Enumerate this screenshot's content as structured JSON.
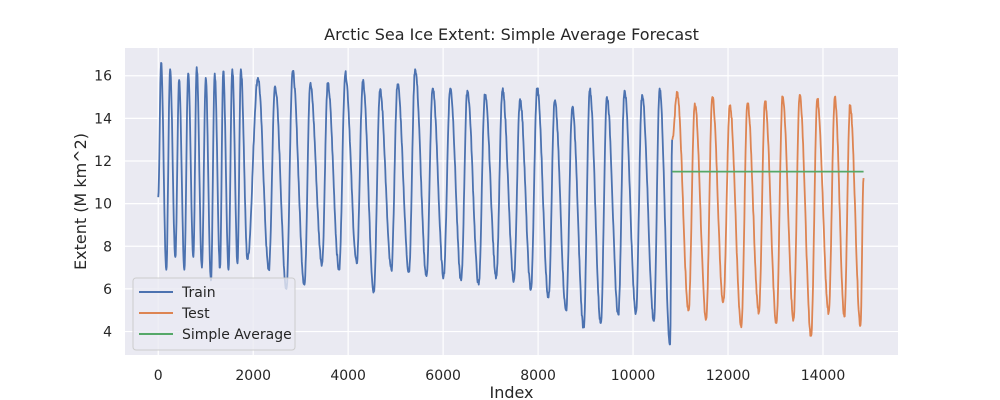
{
  "chart_data": {
    "type": "line",
    "title": "Arctic Sea Ice Extent: Simple Average Forecast",
    "xlabel": "Index",
    "ylabel": "Extent (M km^2)",
    "xlim": [
      -700,
      15580
    ],
    "ylim": [
      2.9,
      17.3
    ],
    "xticks": [
      0,
      2000,
      4000,
      6000,
      8000,
      10000,
      12000,
      14000
    ],
    "yticks": [
      4,
      6,
      8,
      10,
      12,
      14,
      16
    ],
    "grid": true,
    "legend_position": "lower-left",
    "series": [
      {
        "name": "Train",
        "color": "#4c72b0",
        "x_start": 0,
        "x_end": 10823,
        "start_value": 10.3,
        "end_value": 13.0,
        "cycles": [
          {
            "max_x": 60,
            "max": 16.6,
            "min_x": 170,
            "min": 6.9
          },
          {
            "max_x": 250,
            "max": 16.3,
            "min_x": 360,
            "min": 7.5
          },
          {
            "max_x": 440,
            "max": 15.8,
            "min_x": 550,
            "min": 6.9
          },
          {
            "max_x": 630,
            "max": 16.1,
            "min_x": 740,
            "min": 7.5
          },
          {
            "max_x": 810,
            "max": 16.4,
            "min_x": 920,
            "min": 7.0
          },
          {
            "max_x": 1000,
            "max": 15.9,
            "min_x": 1110,
            "min": 6.4
          },
          {
            "max_x": 1190,
            "max": 16.1,
            "min_x": 1300,
            "min": 7.0
          },
          {
            "max_x": 1370,
            "max": 16.2,
            "min_x": 1480,
            "min": 6.9
          },
          {
            "max_x": 1560,
            "max": 16.3,
            "min_x": 1670,
            "min": 7.2
          },
          {
            "max_x": 1740,
            "max": 16.3,
            "min_x": 1880,
            "min": 7.4
          },
          {
            "max_x": 2100,
            "max": 15.9,
            "min_x": 2330,
            "min": 6.9
          },
          {
            "max_x": 2460,
            "max": 15.5,
            "min_x": 2700,
            "min": 6.0
          },
          {
            "max_x": 2830,
            "max": 16.2,
            "min_x": 3080,
            "min": 6.2
          },
          {
            "max_x": 3200,
            "max": 15.6,
            "min_x": 3450,
            "min": 7.2
          },
          {
            "max_x": 3570,
            "max": 15.6,
            "min_x": 3810,
            "min": 6.9
          },
          {
            "max_x": 3940,
            "max": 16.1,
            "min_x": 4180,
            "min": 7.2
          },
          {
            "max_x": 4310,
            "max": 15.7,
            "min_x": 4540,
            "min": 5.9
          },
          {
            "max_x": 4670,
            "max": 15.3,
            "min_x": 4910,
            "min": 6.9
          },
          {
            "max_x": 5040,
            "max": 15.6,
            "min_x": 5280,
            "min": 6.8
          },
          {
            "max_x": 5410,
            "max": 16.3,
            "min_x": 5650,
            "min": 6.6
          },
          {
            "max_x": 5780,
            "max": 15.4,
            "min_x": 6010,
            "min": 6.6
          },
          {
            "max_x": 6150,
            "max": 15.4,
            "min_x": 6380,
            "min": 6.4
          },
          {
            "max_x": 6510,
            "max": 15.3,
            "min_x": 6750,
            "min": 6.2
          },
          {
            "max_x": 6880,
            "max": 15.1,
            "min_x": 7120,
            "min": 6.6
          },
          {
            "max_x": 7250,
            "max": 15.3,
            "min_x": 7490,
            "min": 6.4
          },
          {
            "max_x": 7620,
            "max": 14.9,
            "min_x": 7850,
            "min": 6.0
          },
          {
            "max_x": 7980,
            "max": 15.4,
            "min_x": 8220,
            "min": 5.6
          },
          {
            "max_x": 8350,
            "max": 14.8,
            "min_x": 8590,
            "min": 5.0
          },
          {
            "max_x": 8720,
            "max": 14.5,
            "min_x": 8960,
            "min": 4.2
          },
          {
            "max_x": 9090,
            "max": 15.3,
            "min_x": 9320,
            "min": 4.4
          },
          {
            "max_x": 9450,
            "max": 15.0,
            "min_x": 9690,
            "min": 4.8
          },
          {
            "max_x": 9820,
            "max": 15.3,
            "min_x": 10060,
            "min": 4.9
          },
          {
            "max_x": 10190,
            "max": 15.1,
            "min_x": 10440,
            "min": 4.5
          },
          {
            "max_x": 10560,
            "max": 15.4,
            "min_x": 10780,
            "min": 3.4
          }
        ]
      },
      {
        "name": "Test",
        "color": "#dd8452",
        "x_start": 10823,
        "x_end": 14855,
        "start_value": 13.0,
        "end_value": 11.2,
        "cycles": [
          {
            "max_x": 10930,
            "max": 15.2,
            "min_x": 11170,
            "min": 5.0
          },
          {
            "max_x": 11300,
            "max": 14.7,
            "min_x": 11540,
            "min": 4.6
          },
          {
            "max_x": 11670,
            "max": 15.0,
            "min_x": 11900,
            "min": 5.4
          },
          {
            "max_x": 12040,
            "max": 14.6,
            "min_x": 12280,
            "min": 4.2
          },
          {
            "max_x": 12410,
            "max": 14.7,
            "min_x": 12650,
            "min": 4.9
          },
          {
            "max_x": 12780,
            "max": 14.8,
            "min_x": 13020,
            "min": 4.4
          },
          {
            "max_x": 13150,
            "max": 15.0,
            "min_x": 13380,
            "min": 4.6
          },
          {
            "max_x": 13510,
            "max": 15.1,
            "min_x": 13750,
            "min": 3.8
          },
          {
            "max_x": 13880,
            "max": 14.9,
            "min_x": 14120,
            "min": 4.9
          },
          {
            "max_x": 14250,
            "max": 15.0,
            "min_x": 14450,
            "min": 4.7
          },
          {
            "max_x": 14570,
            "max": 14.6,
            "min_x": 14790,
            "min": 4.3
          }
        ]
      },
      {
        "name": "Simple Average",
        "color": "#55a868",
        "x": [
          10823,
          14855
        ],
        "y": [
          11.5,
          11.5
        ]
      }
    ]
  }
}
